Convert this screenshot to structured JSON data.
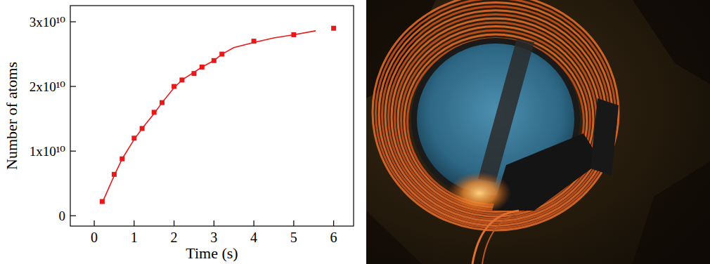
{
  "chart_data": {
    "type": "scatter",
    "x_label": "Time (s)",
    "y_label": "Number of atoms",
    "xlim": [
      -0.6,
      6.5
    ],
    "ylim": [
      -1600000000,
      32500000000
    ],
    "xticks": [
      0,
      1,
      2,
      3,
      4,
      5,
      6
    ],
    "yticks": [
      0,
      {
        "value": 10000000000,
        "label": "1x10¹⁰"
      },
      {
        "value": 20000000000,
        "label": "2x10¹⁰"
      },
      {
        "value": 30000000000,
        "label": "3x10¹⁰"
      }
    ],
    "grid": false,
    "series": [
      {
        "type": "scatter",
        "marker": "square",
        "color": "#e8191a",
        "x": [
          0.2,
          0.5,
          0.7,
          1.0,
          1.2,
          1.5,
          1.7,
          2.0,
          2.2,
          2.5,
          2.7,
          3.0,
          3.2,
          4.0,
          5.0,
          6.0
        ],
        "values": [
          2200000000,
          6400000000,
          8800000000,
          12000000000,
          13500000000,
          16000000000,
          17500000000,
          20000000000,
          21000000000,
          22000000000,
          23000000000,
          24000000000,
          25000000000,
          27000000000,
          28000000000,
          29000000000
        ]
      },
      {
        "type": "line",
        "line_style": "solid",
        "color": "#e8191a",
        "x": [
          0.2,
          0.5,
          0.7,
          1.0,
          1.2,
          1.5,
          1.7,
          2.0,
          2.2,
          2.5,
          2.7,
          3.0,
          3.2,
          3.5,
          4.0,
          4.5,
          5.0,
          5.55
        ],
        "values": [
          2000000000,
          6200000000,
          8800000000,
          11800000000,
          13500000000,
          15800000000,
          17500000000,
          19800000000,
          21000000000,
          22200000000,
          23000000000,
          24000000000,
          25000000000,
          26000000000,
          26800000000,
          27500000000,
          28000000000,
          28600000000
        ]
      }
    ]
  }
}
